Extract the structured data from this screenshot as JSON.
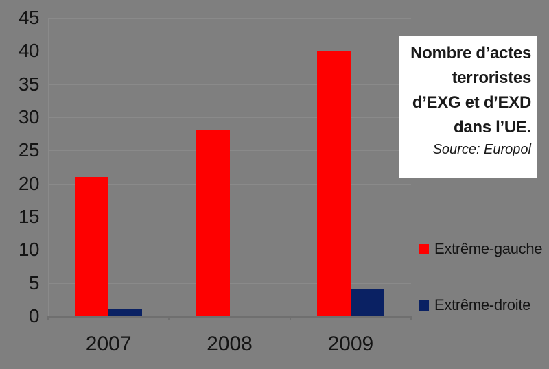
{
  "chart_data": {
    "type": "bar",
    "categories": [
      "2007",
      "2008",
      "2009"
    ],
    "series": [
      {
        "name": "Extrême-gauche",
        "color": "#fe0000",
        "values": [
          21,
          28,
          40
        ]
      },
      {
        "name": "Extrême-droite",
        "color": "#0a2163",
        "values": [
          1,
          0,
          4
        ]
      }
    ],
    "title": "Nombre d’actes terroristes d’EXG et d’EXD dans l’UE.",
    "source": "Source: Europol",
    "xlabel": "",
    "ylabel": "",
    "ylim": [
      0,
      45
    ],
    "ytick_step": 5,
    "grid": true,
    "legend_position": "right",
    "plot_background": "#7f7f7f"
  },
  "title_box": {
    "lines": "Nombre d’actes\nterroristes\nd’EXG et d’EXD\ndans l’UE.",
    "source": "Source: Europol"
  },
  "legend": {
    "items": [
      {
        "label": "Extrême-gauche",
        "color": "#fe0000"
      },
      {
        "label": "Extrême-droite",
        "color": "#0a2163"
      }
    ]
  },
  "colors": {
    "background": "#7f7f7f",
    "gridline": "#8a8a8a",
    "axis": "#6f6f6f",
    "text": "#141414"
  }
}
